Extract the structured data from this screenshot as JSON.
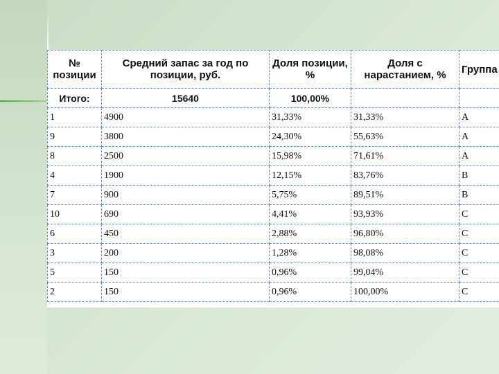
{
  "table": {
    "headers": {
      "position_top": "№",
      "position_bottom": "позиции",
      "avg_stock": "Средний запас за год по позиции, руб.",
      "share": "Доля позиции, %",
      "cumulative": "Доля с нарастанием, %",
      "group": "Группа"
    },
    "total": {
      "label": "Итого:",
      "avg_stock": "15640",
      "share": "100,00%",
      "cumulative": "",
      "group": ""
    },
    "rows": [
      {
        "position": "1",
        "avg_stock": "4900",
        "share": "31,33%",
        "cumulative": "31,33%",
        "group": "A"
      },
      {
        "position": "9",
        "avg_stock": "3800",
        "share": "24,30%",
        "cumulative": "55,63%",
        "group": "A"
      },
      {
        "position": "8",
        "avg_stock": "2500",
        "share": "15,98%",
        "cumulative": "71,61%",
        "group": "A"
      },
      {
        "position": "4",
        "avg_stock": "1900",
        "share": "12,15%",
        "cumulative": "83,76%",
        "group": "B"
      },
      {
        "position": "7",
        "avg_stock": "900",
        "share": "5,75%",
        "cumulative": "89,51%",
        "group": "B"
      },
      {
        "position": "10",
        "avg_stock": "690",
        "share": "4,41%",
        "cumulative": "93,93%",
        "group": "C"
      },
      {
        "position": "6",
        "avg_stock": "450",
        "share": "2,88%",
        "cumulative": "96,80%",
        "group": "C"
      },
      {
        "position": "3",
        "avg_stock": "200",
        "share": "1,28%",
        "cumulative": "98,08%",
        "group": "C"
      },
      {
        "position": "5",
        "avg_stock": "150",
        "share": "0,96%",
        "cumulative": "99,04%",
        "group": "C"
      },
      {
        "position": "2",
        "avg_stock": "150",
        "share": "0,96%",
        "cumulative": "100,00%",
        "group": "C"
      }
    ]
  }
}
